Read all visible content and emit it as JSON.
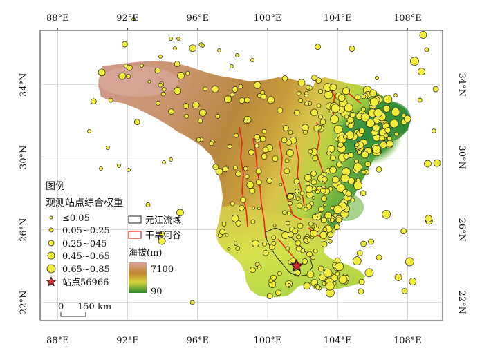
{
  "map": {
    "longitude_ticks": [
      "88°E",
      "92°E",
      "96°E",
      "100°E",
      "104°E",
      "108°E"
    ],
    "latitude_ticks": [
      "22°N",
      "26°N",
      "30°N",
      "34°N"
    ],
    "longitude_values": [
      88,
      92,
      96,
      100,
      104,
      108
    ],
    "latitude_values": [
      22,
      26,
      30,
      34
    ],
    "lon_range": [
      87,
      110
    ],
    "lat_range": [
      21,
      37
    ]
  },
  "legend": {
    "title": "图例",
    "weight_title": "观测站点综合权重",
    "weight_classes": [
      {
        "label": "≤0.05"
      },
      {
        "label": "0.05~0.25"
      },
      {
        "label": "0.25~045"
      },
      {
        "label": "0.45~0.65"
      },
      {
        "label": "0.65~0.85"
      }
    ],
    "station_label": "站点56966",
    "basin_label": "元江流域",
    "valley_label": "干旱河谷",
    "elevation_title": "海拔(m)",
    "elevation_high": "7100",
    "elevation_low": "90",
    "scale_zero": "0",
    "scale_label": "150 km"
  },
  "colors": {
    "station_fill": "#f2ec3a",
    "station_stroke": "#222222",
    "valley": "#e8231a",
    "star": "#d62828",
    "grid": "#bfbfbf",
    "elev_high": "#c89a86",
    "elev_mid": "#c88a28",
    "elev_low": "#2e8b2e"
  }
}
